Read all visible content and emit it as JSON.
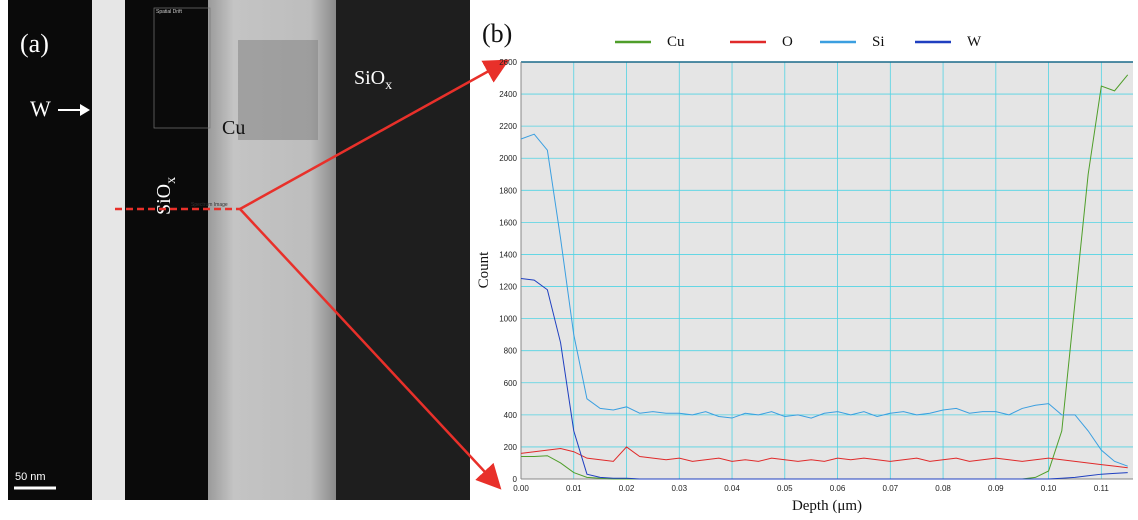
{
  "panel_a": {
    "label": "(a)",
    "w_label": "W",
    "cu_label": "Cu",
    "siox_left": {
      "main": "SiO",
      "sub": "x"
    },
    "siox_right": {
      "main": "SiO",
      "sub": "x"
    },
    "scale_bar": "50 nm",
    "drift_box": "Spatial Drift",
    "spectrum_box": "Spectrum Image"
  },
  "chart_data": {
    "type": "line",
    "panel_label": "(b)",
    "x_label": "Depth (μm)",
    "y_label": "Count",
    "x": [
      0,
      0.0025,
      0.005,
      0.0075,
      0.01,
      0.0125,
      0.015,
      0.0175,
      0.02,
      0.0225,
      0.025,
      0.0275,
      0.03,
      0.0325,
      0.035,
      0.0375,
      0.04,
      0.0425,
      0.045,
      0.0475,
      0.05,
      0.0525,
      0.055,
      0.0575,
      0.06,
      0.0625,
      0.065,
      0.0675,
      0.07,
      0.0725,
      0.075,
      0.0775,
      0.08,
      0.0825,
      0.085,
      0.0875,
      0.09,
      0.0925,
      0.095,
      0.0975,
      0.1,
      0.1025,
      0.105,
      0.1075,
      0.11,
      0.1125,
      0.115
    ],
    "series": [
      {
        "name": "Cu",
        "color": "#4f9e2a",
        "values": [
          140,
          140,
          145,
          100,
          40,
          10,
          5,
          0,
          0,
          0,
          0,
          0,
          0,
          0,
          0,
          0,
          0,
          0,
          0,
          0,
          0,
          0,
          0,
          0,
          0,
          0,
          0,
          0,
          0,
          0,
          0,
          0,
          0,
          0,
          0,
          0,
          0,
          0,
          0,
          10,
          50,
          300,
          1100,
          1900,
          2450,
          2420,
          2520
        ]
      },
      {
        "name": "O",
        "color": "#e02a2a",
        "values": [
          160,
          170,
          180,
          190,
          170,
          130,
          120,
          110,
          200,
          140,
          130,
          120,
          130,
          110,
          120,
          130,
          110,
          120,
          110,
          130,
          120,
          110,
          120,
          110,
          130,
          120,
          130,
          120,
          110,
          120,
          130,
          110,
          120,
          130,
          110,
          120,
          130,
          120,
          110,
          120,
          130,
          120,
          110,
          100,
          90,
          80,
          70
        ]
      },
      {
        "name": "Si",
        "color": "#3b9fe0",
        "values": [
          2120,
          2150,
          2050,
          1500,
          900,
          500,
          440,
          430,
          450,
          410,
          420,
          410,
          410,
          400,
          420,
          390,
          380,
          410,
          400,
          420,
          390,
          400,
          380,
          410,
          420,
          400,
          420,
          390,
          410,
          420,
          400,
          410,
          430,
          440,
          410,
          420,
          420,
          400,
          440,
          460,
          470,
          400,
          400,
          300,
          180,
          110,
          80
        ]
      },
      {
        "name": "W",
        "color": "#1f3fc0",
        "values": [
          1250,
          1240,
          1180,
          850,
          300,
          30,
          10,
          5,
          5,
          0,
          0,
          0,
          0,
          0,
          0,
          0,
          0,
          0,
          0,
          0,
          0,
          0,
          0,
          0,
          0,
          0,
          0,
          0,
          0,
          0,
          0,
          0,
          0,
          0,
          0,
          0,
          0,
          0,
          0,
          0,
          0,
          5,
          10,
          20,
          30,
          35,
          40
        ]
      }
    ],
    "xlim": [
      0,
      0.116
    ],
    "ylim": [
      0,
      2600
    ],
    "xticks": [
      {
        "value": 0,
        "label": "0.00"
      },
      0.01,
      0.02,
      0.03,
      0.04,
      0.05,
      0.06,
      0.07,
      0.08,
      0.09,
      {
        "value": 0.1,
        "label": "0.10"
      },
      0.11
    ],
    "yticks": [
      0,
      200,
      400,
      600,
      800,
      1000,
      1200,
      1400,
      1600,
      1800,
      2000,
      2200,
      2400,
      2600
    ],
    "grid": true,
    "legend": "top"
  }
}
